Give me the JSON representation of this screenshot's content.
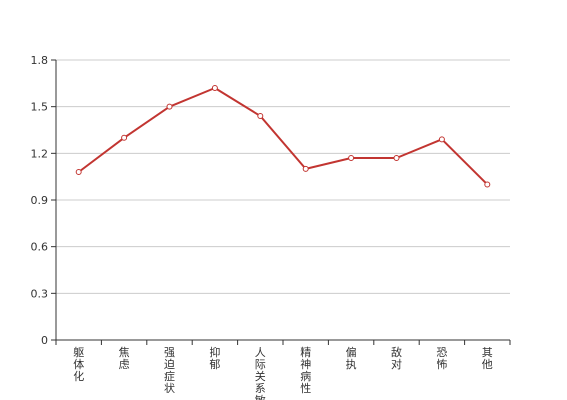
{
  "chart_data": {
    "type": "line",
    "title": "",
    "xlabel": "",
    "ylabel": "",
    "categories": [
      "躯体化",
      "焦虑",
      "强迫症状",
      "抑郁",
      "人际关系敏感",
      "精神病性",
      "偏执",
      "敌对",
      "恐怖",
      "其他"
    ],
    "series": [
      {
        "values": [
          1.08,
          1.3,
          1.5,
          1.62,
          1.44,
          1.1,
          1.17,
          1.17,
          1.29,
          1.0
        ]
      }
    ],
    "ylim": [
      0,
      1.8
    ],
    "yticks": [
      "0",
      "0.3",
      "0.6",
      "0.9",
      "1.2",
      "1.5",
      "1.8"
    ],
    "grid": true,
    "legend": "none",
    "colors": {
      "line": "#c23531",
      "grid": "#cccccc",
      "axis": "#333333"
    }
  }
}
